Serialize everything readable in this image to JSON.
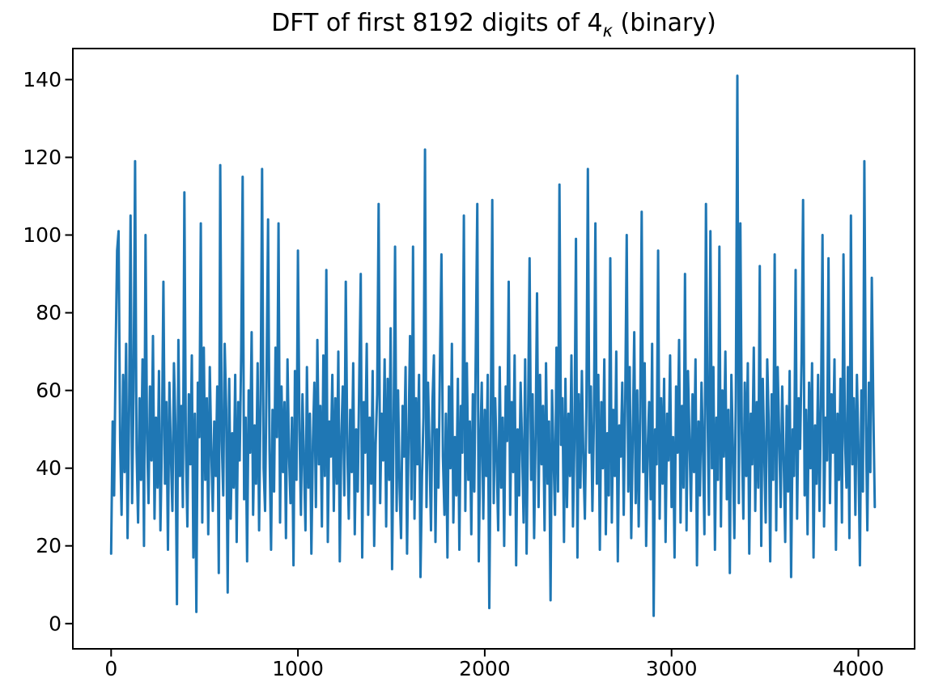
{
  "figure": {
    "background": "#ffffff"
  },
  "chart_data": {
    "type": "line",
    "title_plain": "DFT of first 8192 digits of 4κ (binary)",
    "title_parts": {
      "prefix": "DFT of first 8192 digits of 4",
      "subscript": "κ",
      "suffix": " (binary)"
    },
    "xlabel": "",
    "ylabel": "",
    "legend": "none",
    "grid": false,
    "line_color": "#1f77b4",
    "axis_color": "#000000",
    "xticks": [
      0,
      1000,
      2000,
      3000,
      4000
    ],
    "yticks": [
      0,
      20,
      40,
      60,
      80,
      100,
      120,
      140
    ],
    "xlim": [
      -205,
      4301
    ],
    "ylim": [
      -6.5,
      148
    ],
    "max_peak": {
      "x": 3352,
      "value": 141
    },
    "x_start": 0,
    "x_step": 8,
    "values": [
      18,
      52,
      33,
      70,
      96,
      101,
      47,
      28,
      64,
      39,
      72,
      22,
      55,
      105,
      31,
      60,
      119,
      45,
      26,
      58,
      37,
      68,
      20,
      100,
      49,
      31,
      61,
      42,
      74,
      27,
      53,
      35,
      65,
      24,
      48,
      88,
      36,
      57,
      19,
      62,
      43,
      29,
      67,
      51,
      5,
      73,
      38,
      56,
      30,
      111,
      46,
      25,
      59,
      41,
      69,
      17,
      54,
      3,
      62,
      48,
      103,
      26,
      71,
      37,
      58,
      23,
      66,
      45,
      29,
      52,
      38,
      61,
      13,
      118,
      47,
      33,
      72,
      55,
      8,
      63,
      27,
      49,
      35,
      64,
      21,
      57,
      42,
      70,
      115,
      32,
      53,
      16,
      60,
      44,
      75,
      28,
      51,
      36,
      67,
      24,
      58,
      117,
      40,
      29,
      63,
      104,
      45,
      19,
      55,
      34,
      71,
      48,
      103,
      26,
      61,
      39,
      57,
      22,
      68,
      44,
      31,
      53,
      15,
      65,
      37,
      96,
      50,
      28,
      59,
      42,
      24,
      66,
      35,
      54,
      18,
      47,
      62,
      30,
      73,
      41,
      56,
      25,
      69,
      38,
      91,
      21,
      52,
      43,
      64,
      29,
      58,
      36,
      70,
      16,
      48,
      61,
      33,
      88,
      45,
      27,
      55,
      39,
      67,
      23,
      50,
      34,
      62,
      90,
      17,
      57,
      44,
      72,
      28,
      53,
      36,
      65,
      20,
      46,
      59,
      108,
      31,
      54,
      42,
      68,
      25,
      63,
      37,
      76,
      14,
      51,
      97,
      29,
      60,
      35,
      22,
      56,
      43,
      66,
      18,
      49,
      74,
      32,
      97,
      27,
      58,
      41,
      64,
      12,
      38,
      53,
      122,
      30,
      62,
      45,
      24,
      57,
      69,
      21,
      50,
      35,
      66,
      95,
      43,
      28,
      54,
      17,
      61,
      40,
      72,
      26,
      48,
      33,
      63,
      19,
      56,
      44,
      105,
      29,
      67,
      37,
      52,
      23,
      59,
      34,
      70,
      108,
      16,
      46,
      62,
      27,
      55,
      38,
      64,
      4,
      49,
      109,
      31,
      58,
      42,
      24,
      66,
      35,
      53,
      20,
      61,
      47,
      88,
      28,
      57,
      39,
      69,
      15,
      50,
      33,
      62,
      45,
      26,
      68,
      18,
      55,
      94,
      37,
      59,
      22,
      48,
      85,
      30,
      64,
      41,
      56,
      24,
      67,
      36,
      52,
      6,
      60,
      43,
      28,
      71,
      34,
      113,
      46,
      58,
      21,
      63,
      30,
      54,
      38,
      69,
      25,
      47,
      99,
      17,
      59,
      35,
      65,
      42,
      27,
      56,
      117,
      44,
      61,
      29,
      52,
      103,
      36,
      64,
      19,
      57,
      40,
      68,
      23,
      49,
      33,
      94,
      26,
      55,
      38,
      70,
      16,
      51,
      43,
      62,
      28,
      58,
      100,
      34,
      66,
      22,
      47,
      75,
      31,
      60,
      25,
      53,
      106,
      39,
      67,
      20,
      45,
      57,
      32,
      72,
      2,
      50,
      41,
      96,
      27,
      58,
      36,
      63,
      21,
      54,
      42,
      69,
      30,
      48,
      17,
      61,
      44,
      73,
      26,
      56,
      35,
      90,
      24,
      65,
      47,
      29,
      59,
      39,
      68,
      15,
      52,
      33,
      62,
      45,
      23,
      108,
      57,
      28,
      101,
      40,
      66,
      19,
      53,
      37,
      97,
      25,
      60,
      43,
      70,
      32,
      55,
      13,
      64,
      46,
      22,
      58,
      141,
      31,
      103,
      49,
      27,
      62,
      38,
      67,
      18,
      54,
      41,
      71,
      29,
      57,
      35,
      92,
      20,
      63,
      44,
      26,
      68,
      52,
      16,
      59,
      37,
      95,
      24,
      66,
      48,
      30,
      61,
      43,
      21,
      56,
      34,
      65,
      12,
      50,
      38,
      91,
      27,
      58,
      45,
      69,
      109,
      33,
      55,
      23,
      62,
      40,
      67,
      17,
      51,
      36,
      64,
      29,
      57,
      100,
      25,
      53,
      42,
      94,
      31,
      59,
      44,
      68,
      19,
      54,
      37,
      63,
      26,
      95,
      48,
      35,
      66,
      22,
      105,
      41,
      58,
      28,
      64,
      46,
      15,
      60,
      34,
      119,
      52,
      24,
      62,
      39,
      89,
      55,
      30
    ]
  }
}
